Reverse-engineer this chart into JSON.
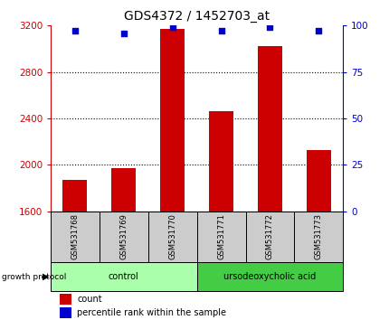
{
  "title": "GDS4372 / 1452703_at",
  "samples": [
    "GSM531768",
    "GSM531769",
    "GSM531770",
    "GSM531771",
    "GSM531772",
    "GSM531773"
  ],
  "counts": [
    1870,
    1970,
    3175,
    2460,
    3020,
    2130
  ],
  "percentile_ranks": [
    97,
    96,
    99,
    97,
    99,
    97
  ],
  "ylim_left": [
    1600,
    3200
  ],
  "ylim_right": [
    0,
    100
  ],
  "yticks_left": [
    1600,
    2000,
    2400,
    2800,
    3200
  ],
  "yticks_right": [
    0,
    25,
    50,
    75,
    100
  ],
  "bar_color": "#cc0000",
  "dot_color": "#0000cc",
  "bar_bottom": 1600,
  "groups": [
    {
      "label": "control",
      "indices": [
        0,
        1,
        2
      ],
      "color": "#aaffaa"
    },
    {
      "label": "ursodeoxycholic acid",
      "indices": [
        3,
        4,
        5
      ],
      "color": "#44cc44"
    }
  ],
  "growth_protocol_label": "growth protocol",
  "legend_count_label": "count",
  "legend_pct_label": "percentile rank within the sample",
  "title_fontsize": 10,
  "axis_label_color_left": "#cc0000",
  "axis_label_color_right": "#0000cc",
  "background_color": "#ffffff",
  "bar_width": 0.5,
  "sample_box_color": "#cccccc",
  "sample_box_edge": "#000000"
}
